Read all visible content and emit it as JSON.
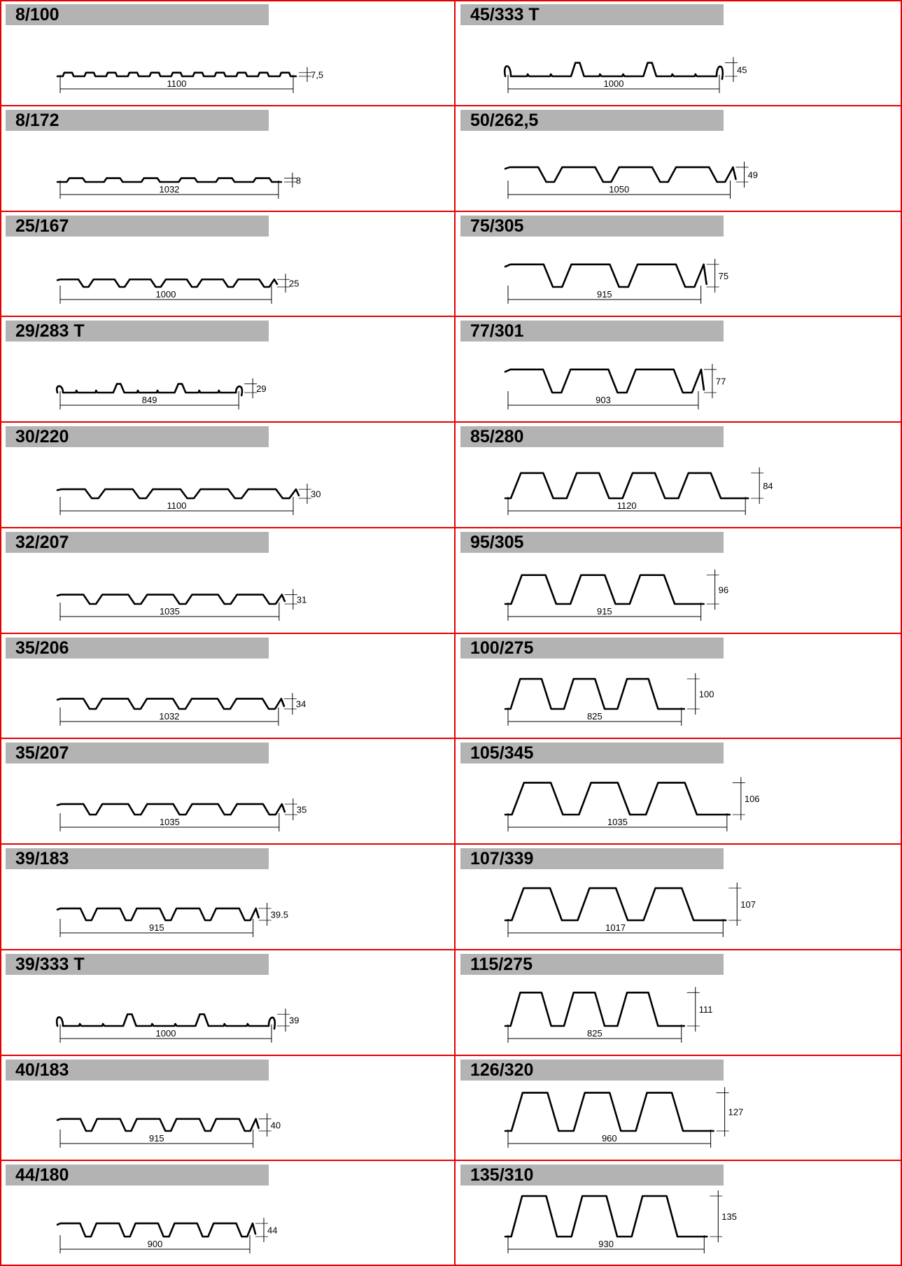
{
  "colors": {
    "grid": "#e60000",
    "title_band": "#b3b3b3",
    "drawing": "#000000",
    "background": "#ffffff"
  },
  "profiles": [
    {
      "name": "8/100",
      "height": "7,5",
      "width": "1100",
      "height_mm": 7.5,
      "ribs": 11,
      "style": "micro"
    },
    {
      "name": "45/333 T",
      "height": "45",
      "width": "1000",
      "height_mm": 45,
      "ribs": 3,
      "style": "t-rib"
    },
    {
      "name": "8/172",
      "height": "8",
      "width": "1032",
      "height_mm": 8,
      "ribs": 6,
      "style": "micro"
    },
    {
      "name": "50/262,5",
      "height": "49",
      "width": "1050",
      "height_mm": 49,
      "ribs": 4,
      "style": "trap"
    },
    {
      "name": "25/167",
      "height": "25",
      "width": "1000",
      "height_mm": 25,
      "ribs": 6,
      "style": "trap"
    },
    {
      "name": "75/305",
      "height": "75",
      "width": "915",
      "height_mm": 75,
      "ribs": 3,
      "style": "trap"
    },
    {
      "name": "29/283 T",
      "height": "29",
      "width": "849",
      "height_mm": 29,
      "ribs": 3,
      "style": "t-rib"
    },
    {
      "name": "77/301",
      "height": "77",
      "width": "903",
      "height_mm": 77,
      "ribs": 3,
      "style": "trap"
    },
    {
      "name": "30/220",
      "height": "30",
      "width": "1100",
      "height_mm": 30,
      "ribs": 5,
      "style": "trap"
    },
    {
      "name": "85/280",
      "height": "84",
      "width": "1120",
      "height_mm": 84,
      "ribs": 4,
      "style": "deck"
    },
    {
      "name": "32/207",
      "height": "31",
      "width": "1035",
      "height_mm": 31,
      "ribs": 5,
      "style": "trap"
    },
    {
      "name": "95/305",
      "height": "96",
      "width": "915",
      "height_mm": 96,
      "ribs": 3,
      "style": "deck"
    },
    {
      "name": "35/206",
      "height": "34",
      "width": "1032",
      "height_mm": 34,
      "ribs": 5,
      "style": "trap"
    },
    {
      "name": "100/275",
      "height": "100",
      "width": "825",
      "height_mm": 100,
      "ribs": 3,
      "style": "deck"
    },
    {
      "name": "35/207",
      "height": "35",
      "width": "1035",
      "height_mm": 35,
      "ribs": 5,
      "style": "trap"
    },
    {
      "name": "105/345",
      "height": "106",
      "width": "1035",
      "height_mm": 106,
      "ribs": 3,
      "style": "deck"
    },
    {
      "name": "39/183",
      "height": "39.5",
      "width": "915",
      "height_mm": 39.5,
      "ribs": 5,
      "style": "trap"
    },
    {
      "name": "107/339",
      "height": "107",
      "width": "1017",
      "height_mm": 107,
      "ribs": 3,
      "style": "deck"
    },
    {
      "name": "39/333 T",
      "height": "39",
      "width": "1000",
      "height_mm": 39,
      "ribs": 3,
      "style": "t-rib"
    },
    {
      "name": "115/275",
      "height": "111",
      "width": "825",
      "height_mm": 111,
      "ribs": 3,
      "style": "deck"
    },
    {
      "name": "40/183",
      "height": "40",
      "width": "915",
      "height_mm": 40,
      "ribs": 5,
      "style": "trap"
    },
    {
      "name": "126/320",
      "height": "127",
      "width": "960",
      "height_mm": 127,
      "ribs": 3,
      "style": "deck"
    },
    {
      "name": "44/180",
      "height": "44",
      "width": "900",
      "height_mm": 44,
      "ribs": 5,
      "style": "trap"
    },
    {
      "name": "135/310",
      "height": "135",
      "width": "930",
      "height_mm": 135,
      "ribs": 3,
      "style": "deck"
    }
  ]
}
